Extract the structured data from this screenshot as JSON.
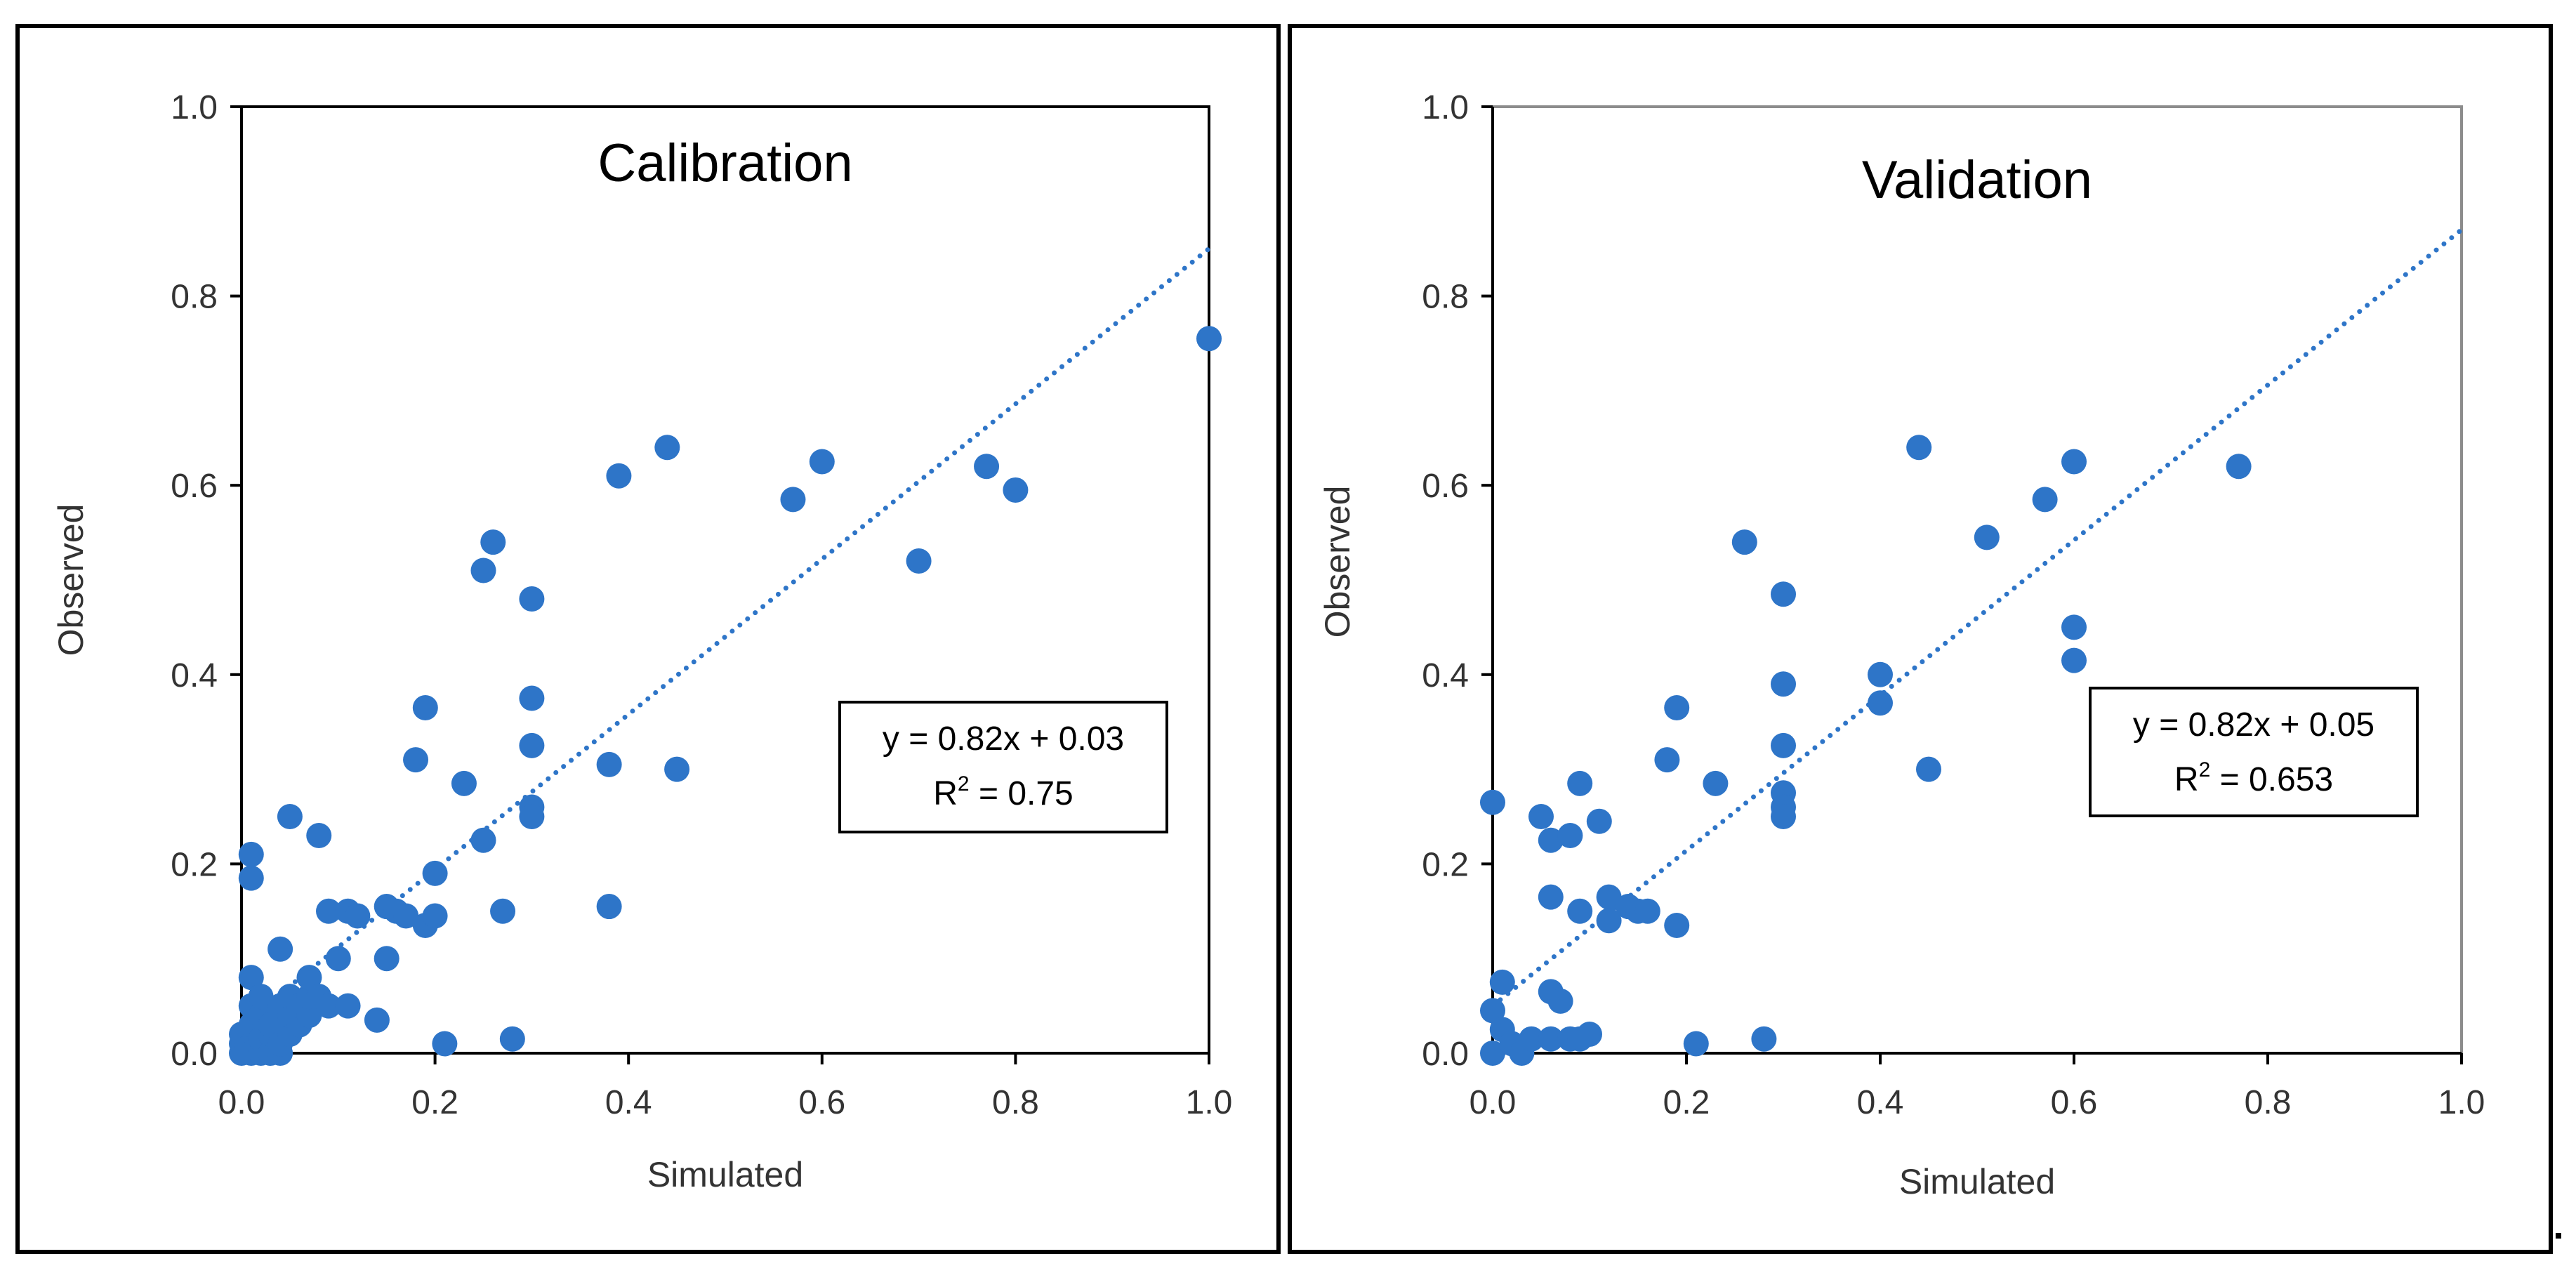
{
  "colors": {
    "marker": "#2e75c8",
    "trendline": "#2e75c8",
    "axis": "#000000",
    "frame_right_plot": "#8c8c8c"
  },
  "chart_data": [
    {
      "type": "scatter",
      "title": "Calibration",
      "xlabel": "Simulated",
      "ylabel": "Observed",
      "xlim": [
        0,
        1
      ],
      "ylim": [
        0,
        1
      ],
      "x_ticks": [
        "0.0",
        "0.2",
        "0.4",
        "0.6",
        "0.8",
        "1.0"
      ],
      "y_ticks": [
        "0.0",
        "0.2",
        "0.4",
        "0.6",
        "0.8",
        "1.0"
      ],
      "grid": false,
      "legend": "none",
      "equation": "y = 0.82x + 0.03",
      "r2_label": "R",
      "r2_value": " = 0.75",
      "trendline": {
        "slope": 0.82,
        "intercept": 0.03,
        "x_range": [
          0,
          1
        ]
      },
      "series": [
        {
          "name": "Calibration",
          "points": [
            [
              0.0,
              0.0
            ],
            [
              0.0,
              0.01
            ],
            [
              0.0,
              0.02
            ],
            [
              0.005,
              0.005
            ],
            [
              0.01,
              0.0
            ],
            [
              0.01,
              0.03
            ],
            [
              0.01,
              0.05
            ],
            [
              0.01,
              0.08
            ],
            [
              0.01,
              0.21
            ],
            [
              0.01,
              0.185
            ],
            [
              0.02,
              0.0
            ],
            [
              0.02,
              0.015
            ],
            [
              0.02,
              0.04
            ],
            [
              0.02,
              0.06
            ],
            [
              0.03,
              0.0
            ],
            [
              0.03,
              0.02
            ],
            [
              0.03,
              0.03
            ],
            [
              0.04,
              0.0
            ],
            [
              0.04,
              0.01
            ],
            [
              0.04,
              0.05
            ],
            [
              0.04,
              0.11
            ],
            [
              0.05,
              0.02
            ],
            [
              0.05,
              0.04
            ],
            [
              0.05,
              0.06
            ],
            [
              0.05,
              0.25
            ],
            [
              0.06,
              0.03
            ],
            [
              0.06,
              0.05
            ],
            [
              0.07,
              0.04
            ],
            [
              0.07,
              0.06
            ],
            [
              0.07,
              0.08
            ],
            [
              0.08,
              0.06
            ],
            [
              0.08,
              0.23
            ],
            [
              0.09,
              0.05
            ],
            [
              0.09,
              0.15
            ],
            [
              0.1,
              0.1
            ],
            [
              0.11,
              0.15
            ],
            [
              0.11,
              0.05
            ],
            [
              0.12,
              0.145
            ],
            [
              0.14,
              0.035
            ],
            [
              0.15,
              0.1
            ],
            [
              0.15,
              0.155
            ],
            [
              0.16,
              0.15
            ],
            [
              0.17,
              0.145
            ],
            [
              0.18,
              0.31
            ],
            [
              0.19,
              0.365
            ],
            [
              0.19,
              0.135
            ],
            [
              0.2,
              0.145
            ],
            [
              0.2,
              0.19
            ],
            [
              0.21,
              0.01
            ],
            [
              0.23,
              0.285
            ],
            [
              0.25,
              0.51
            ],
            [
              0.25,
              0.225
            ],
            [
              0.26,
              0.54
            ],
            [
              0.27,
              0.15
            ],
            [
              0.28,
              0.015
            ],
            [
              0.3,
              0.48
            ],
            [
              0.3,
              0.375
            ],
            [
              0.3,
              0.325
            ],
            [
              0.3,
              0.26
            ],
            [
              0.3,
              0.25
            ],
            [
              0.38,
              0.305
            ],
            [
              0.38,
              0.155
            ],
            [
              0.39,
              0.61
            ],
            [
              0.44,
              0.64
            ],
            [
              0.45,
              0.3
            ],
            [
              0.57,
              0.585
            ],
            [
              0.6,
              0.625
            ],
            [
              0.7,
              0.52
            ],
            [
              0.77,
              0.62
            ],
            [
              0.8,
              0.595
            ],
            [
              1.0,
              0.755
            ]
          ]
        }
      ]
    },
    {
      "type": "scatter",
      "title": "Validation",
      "xlabel": "Simulated",
      "ylabel": "Observed",
      "xlim": [
        0,
        1
      ],
      "ylim": [
        0,
        1
      ],
      "x_ticks": [
        "0.0",
        "0.2",
        "0.4",
        "0.6",
        "0.8",
        "1.0"
      ],
      "y_ticks": [
        "0.0",
        "0.2",
        "0.4",
        "0.6",
        "0.8",
        "1.0"
      ],
      "grid": false,
      "legend": "none",
      "equation": "y = 0.82x + 0.05",
      "r2_label": "R",
      "r2_value": " = 0.653",
      "trendline": {
        "slope": 0.82,
        "intercept": 0.05,
        "x_range": [
          0,
          1
        ]
      },
      "series": [
        {
          "name": "Validation",
          "points": [
            [
              0.0,
              0.0
            ],
            [
              0.0,
              0.045
            ],
            [
              0.0,
              0.265
            ],
            [
              0.01,
              0.075
            ],
            [
              0.01,
              0.025
            ],
            [
              0.02,
              0.01
            ],
            [
              0.03,
              0.0
            ],
            [
              0.04,
              0.015
            ],
            [
              0.05,
              0.25
            ],
            [
              0.06,
              0.225
            ],
            [
              0.06,
              0.165
            ],
            [
              0.06,
              0.065
            ],
            [
              0.06,
              0.015
            ],
            [
              0.07,
              0.055
            ],
            [
              0.08,
              0.23
            ],
            [
              0.08,
              0.015
            ],
            [
              0.09,
              0.285
            ],
            [
              0.09,
              0.15
            ],
            [
              0.09,
              0.015
            ],
            [
              0.1,
              0.02
            ],
            [
              0.11,
              0.245
            ],
            [
              0.12,
              0.165
            ],
            [
              0.12,
              0.14
            ],
            [
              0.14,
              0.155
            ],
            [
              0.15,
              0.15
            ],
            [
              0.16,
              0.15
            ],
            [
              0.18,
              0.31
            ],
            [
              0.19,
              0.365
            ],
            [
              0.19,
              0.135
            ],
            [
              0.21,
              0.01
            ],
            [
              0.23,
              0.285
            ],
            [
              0.26,
              0.54
            ],
            [
              0.28,
              0.015
            ],
            [
              0.3,
              0.485
            ],
            [
              0.3,
              0.39
            ],
            [
              0.3,
              0.325
            ],
            [
              0.3,
              0.275
            ],
            [
              0.3,
              0.26
            ],
            [
              0.3,
              0.25
            ],
            [
              0.4,
              0.4
            ],
            [
              0.4,
              0.37
            ],
            [
              0.44,
              0.64
            ],
            [
              0.45,
              0.3
            ],
            [
              0.51,
              0.545
            ],
            [
              0.57,
              0.585
            ],
            [
              0.6,
              0.625
            ],
            [
              0.6,
              0.45
            ],
            [
              0.6,
              0.415
            ],
            [
              0.77,
              0.62
            ]
          ]
        }
      ]
    }
  ]
}
